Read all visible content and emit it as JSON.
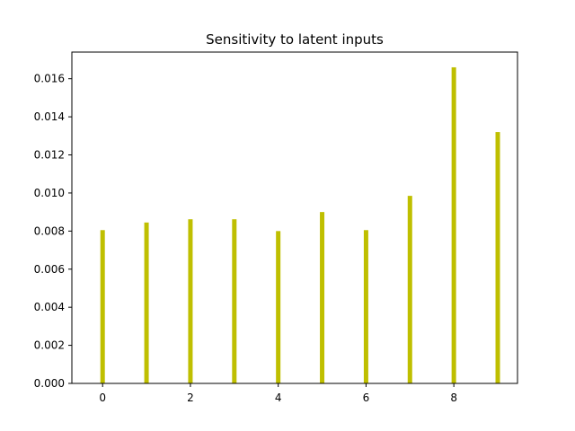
{
  "chart_data": {
    "type": "bar",
    "title": "Sensitivity to latent inputs",
    "xlabel": "",
    "ylabel": "",
    "categories": [
      0,
      1,
      2,
      3,
      4,
      5,
      6,
      7,
      8,
      9
    ],
    "values": [
      0.00805,
      0.00845,
      0.00862,
      0.00862,
      0.008,
      0.009,
      0.00805,
      0.00985,
      0.0166,
      0.0132
    ],
    "bar_color": "#bfbf00",
    "xlim": [
      -0.7,
      9.45
    ],
    "ylim": [
      0,
      0.0174
    ],
    "x_ticks": [
      0,
      2,
      4,
      6,
      8
    ],
    "x_tick_labels": [
      "0",
      "2",
      "4",
      "6",
      "8"
    ],
    "y_ticks": [
      0,
      0.002,
      0.004,
      0.006,
      0.008,
      0.01,
      0.012,
      0.014,
      0.016
    ],
    "y_tick_labels": [
      "0.000",
      "0.002",
      "0.004",
      "0.006",
      "0.008",
      "0.010",
      "0.012",
      "0.014",
      "0.016"
    ],
    "grid": false,
    "legend": "none"
  }
}
